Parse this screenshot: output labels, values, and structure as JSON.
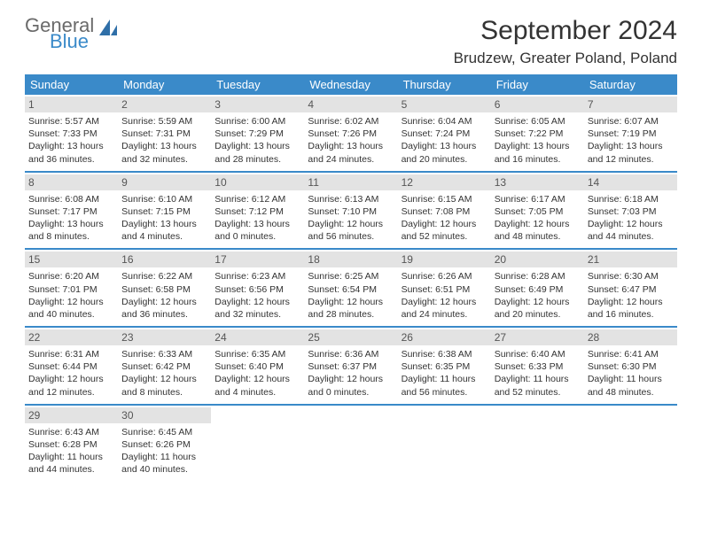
{
  "logo": {
    "text1": "General",
    "text2": "Blue",
    "text1_color": "#6a6a6a",
    "text2_color": "#3a8ac9",
    "icon_color": "#2f6fa8"
  },
  "title": "September 2024",
  "location": "Brudzew, Greater Poland, Poland",
  "colors": {
    "header_bg": "#3a8ac9",
    "header_text": "#ffffff",
    "daynum_bg": "#e3e3e3",
    "daynum_text": "#555555",
    "week_divider": "#3a8ac9",
    "body_text": "#333333"
  },
  "day_headers": [
    "Sunday",
    "Monday",
    "Tuesday",
    "Wednesday",
    "Thursday",
    "Friday",
    "Saturday"
  ],
  "weeks": [
    [
      {
        "n": "1",
        "sunrise": "Sunrise: 5:57 AM",
        "sunset": "Sunset: 7:33 PM",
        "day1": "Daylight: 13 hours",
        "day2": "and 36 minutes."
      },
      {
        "n": "2",
        "sunrise": "Sunrise: 5:59 AM",
        "sunset": "Sunset: 7:31 PM",
        "day1": "Daylight: 13 hours",
        "day2": "and 32 minutes."
      },
      {
        "n": "3",
        "sunrise": "Sunrise: 6:00 AM",
        "sunset": "Sunset: 7:29 PM",
        "day1": "Daylight: 13 hours",
        "day2": "and 28 minutes."
      },
      {
        "n": "4",
        "sunrise": "Sunrise: 6:02 AM",
        "sunset": "Sunset: 7:26 PM",
        "day1": "Daylight: 13 hours",
        "day2": "and 24 minutes."
      },
      {
        "n": "5",
        "sunrise": "Sunrise: 6:04 AM",
        "sunset": "Sunset: 7:24 PM",
        "day1": "Daylight: 13 hours",
        "day2": "and 20 minutes."
      },
      {
        "n": "6",
        "sunrise": "Sunrise: 6:05 AM",
        "sunset": "Sunset: 7:22 PM",
        "day1": "Daylight: 13 hours",
        "day2": "and 16 minutes."
      },
      {
        "n": "7",
        "sunrise": "Sunrise: 6:07 AM",
        "sunset": "Sunset: 7:19 PM",
        "day1": "Daylight: 13 hours",
        "day2": "and 12 minutes."
      }
    ],
    [
      {
        "n": "8",
        "sunrise": "Sunrise: 6:08 AM",
        "sunset": "Sunset: 7:17 PM",
        "day1": "Daylight: 13 hours",
        "day2": "and 8 minutes."
      },
      {
        "n": "9",
        "sunrise": "Sunrise: 6:10 AM",
        "sunset": "Sunset: 7:15 PM",
        "day1": "Daylight: 13 hours",
        "day2": "and 4 minutes."
      },
      {
        "n": "10",
        "sunrise": "Sunrise: 6:12 AM",
        "sunset": "Sunset: 7:12 PM",
        "day1": "Daylight: 13 hours",
        "day2": "and 0 minutes."
      },
      {
        "n": "11",
        "sunrise": "Sunrise: 6:13 AM",
        "sunset": "Sunset: 7:10 PM",
        "day1": "Daylight: 12 hours",
        "day2": "and 56 minutes."
      },
      {
        "n": "12",
        "sunrise": "Sunrise: 6:15 AM",
        "sunset": "Sunset: 7:08 PM",
        "day1": "Daylight: 12 hours",
        "day2": "and 52 minutes."
      },
      {
        "n": "13",
        "sunrise": "Sunrise: 6:17 AM",
        "sunset": "Sunset: 7:05 PM",
        "day1": "Daylight: 12 hours",
        "day2": "and 48 minutes."
      },
      {
        "n": "14",
        "sunrise": "Sunrise: 6:18 AM",
        "sunset": "Sunset: 7:03 PM",
        "day1": "Daylight: 12 hours",
        "day2": "and 44 minutes."
      }
    ],
    [
      {
        "n": "15",
        "sunrise": "Sunrise: 6:20 AM",
        "sunset": "Sunset: 7:01 PM",
        "day1": "Daylight: 12 hours",
        "day2": "and 40 minutes."
      },
      {
        "n": "16",
        "sunrise": "Sunrise: 6:22 AM",
        "sunset": "Sunset: 6:58 PM",
        "day1": "Daylight: 12 hours",
        "day2": "and 36 minutes."
      },
      {
        "n": "17",
        "sunrise": "Sunrise: 6:23 AM",
        "sunset": "Sunset: 6:56 PM",
        "day1": "Daylight: 12 hours",
        "day2": "and 32 minutes."
      },
      {
        "n": "18",
        "sunrise": "Sunrise: 6:25 AM",
        "sunset": "Sunset: 6:54 PM",
        "day1": "Daylight: 12 hours",
        "day2": "and 28 minutes."
      },
      {
        "n": "19",
        "sunrise": "Sunrise: 6:26 AM",
        "sunset": "Sunset: 6:51 PM",
        "day1": "Daylight: 12 hours",
        "day2": "and 24 minutes."
      },
      {
        "n": "20",
        "sunrise": "Sunrise: 6:28 AM",
        "sunset": "Sunset: 6:49 PM",
        "day1": "Daylight: 12 hours",
        "day2": "and 20 minutes."
      },
      {
        "n": "21",
        "sunrise": "Sunrise: 6:30 AM",
        "sunset": "Sunset: 6:47 PM",
        "day1": "Daylight: 12 hours",
        "day2": "and 16 minutes."
      }
    ],
    [
      {
        "n": "22",
        "sunrise": "Sunrise: 6:31 AM",
        "sunset": "Sunset: 6:44 PM",
        "day1": "Daylight: 12 hours",
        "day2": "and 12 minutes."
      },
      {
        "n": "23",
        "sunrise": "Sunrise: 6:33 AM",
        "sunset": "Sunset: 6:42 PM",
        "day1": "Daylight: 12 hours",
        "day2": "and 8 minutes."
      },
      {
        "n": "24",
        "sunrise": "Sunrise: 6:35 AM",
        "sunset": "Sunset: 6:40 PM",
        "day1": "Daylight: 12 hours",
        "day2": "and 4 minutes."
      },
      {
        "n": "25",
        "sunrise": "Sunrise: 6:36 AM",
        "sunset": "Sunset: 6:37 PM",
        "day1": "Daylight: 12 hours",
        "day2": "and 0 minutes."
      },
      {
        "n": "26",
        "sunrise": "Sunrise: 6:38 AM",
        "sunset": "Sunset: 6:35 PM",
        "day1": "Daylight: 11 hours",
        "day2": "and 56 minutes."
      },
      {
        "n": "27",
        "sunrise": "Sunrise: 6:40 AM",
        "sunset": "Sunset: 6:33 PM",
        "day1": "Daylight: 11 hours",
        "day2": "and 52 minutes."
      },
      {
        "n": "28",
        "sunrise": "Sunrise: 6:41 AM",
        "sunset": "Sunset: 6:30 PM",
        "day1": "Daylight: 11 hours",
        "day2": "and 48 minutes."
      }
    ],
    [
      {
        "n": "29",
        "sunrise": "Sunrise: 6:43 AM",
        "sunset": "Sunset: 6:28 PM",
        "day1": "Daylight: 11 hours",
        "day2": "and 44 minutes."
      },
      {
        "n": "30",
        "sunrise": "Sunrise: 6:45 AM",
        "sunset": "Sunset: 6:26 PM",
        "day1": "Daylight: 11 hours",
        "day2": "and 40 minutes."
      },
      {
        "empty": true
      },
      {
        "empty": true
      },
      {
        "empty": true
      },
      {
        "empty": true
      },
      {
        "empty": true
      }
    ]
  ]
}
